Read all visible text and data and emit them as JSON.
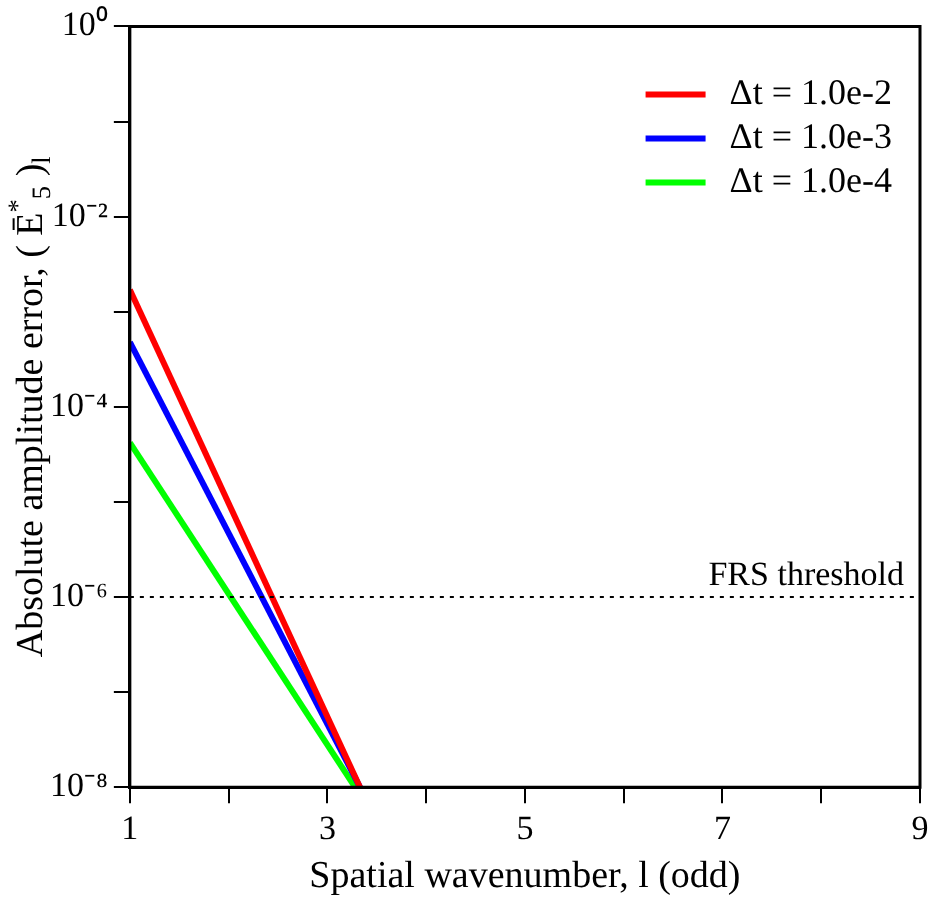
{
  "chart_data": {
    "type": "line",
    "xlabel": "Spatial wavenumber, l (odd)",
    "ylabel": "Absolute amplitude error, ( Ē$^{*}$$_{5}$ )$_{l}$",
    "series": [
      {
        "name": "Δt = 1.0e-2",
        "color": "#ff0000",
        "x": [
          1,
          3.33
        ],
        "values": [
          0.0017,
          1e-08
        ]
      },
      {
        "name": "Δt = 1.0e-3",
        "color": "#0000ff",
        "x": [
          1,
          3.33
        ],
        "values": [
          0.00048,
          1e-08
        ]
      },
      {
        "name": "Δt = 1.0e-4",
        "color": "#00ff00",
        "x": [
          1,
          3.28
        ],
        "values": [
          4.2e-05,
          1e-08
        ]
      }
    ],
    "log": "y",
    "xlim": [
      1,
      9
    ],
    "ylim": [
      1e-08,
      1
    ],
    "xticks": [
      1,
      {
        "value": 2,
        "label": null
      },
      3,
      {
        "value": 4,
        "label": null
      },
      5,
      {
        "value": 6,
        "label": null
      },
      7,
      {
        "value": 8,
        "label": null
      },
      9
    ],
    "yticks": [
      {
        "value": 1e-08,
        "label": "10⁻⁸"
      },
      {
        "value": 1e-07,
        "label": null
      },
      {
        "value": 1e-06,
        "label": "10⁻⁶"
      },
      {
        "value": 1e-05,
        "label": null
      },
      {
        "value": 0.0001,
        "label": "10⁻⁴"
      },
      {
        "value": 0.001,
        "label": null
      },
      {
        "value": 0.01,
        "label": "10⁻²"
      },
      {
        "value": 0.1,
        "label": null
      },
      {
        "value": 1,
        "label": "10⁰"
      }
    ],
    "ref_lines": [
      {
        "axis": "y",
        "value": 1e-06,
        "label": "FRS threshold",
        "line_style": "dotted",
        "color": "#000000"
      }
    ],
    "legend": "top right",
    "grid": false,
    "marker": "none",
    "line_style": "solid"
  }
}
